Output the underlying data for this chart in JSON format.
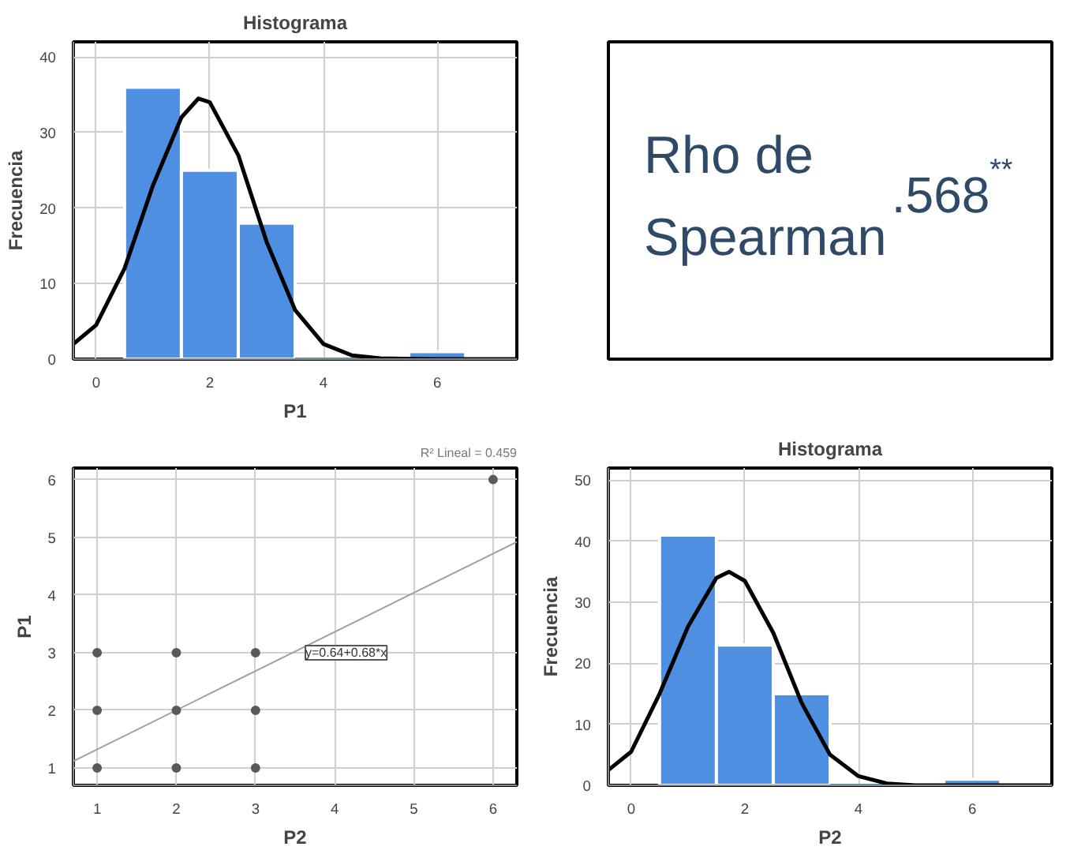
{
  "chart_data": [
    {
      "type": "histogram",
      "title": "Histograma",
      "xlabel": "P1",
      "ylabel": "Frecuencia",
      "bins": [
        0.5,
        1.5,
        2.5,
        3.5,
        4.5,
        5.5,
        6.5
      ],
      "values": [
        36,
        25,
        18,
        0,
        0,
        1
      ],
      "color": "#4f8fe2",
      "series": [
        {
          "type": "line",
          "color": "#000000",
          "x": [
            -0.4,
            0,
            0.5,
            1,
            1.5,
            1.8,
            2,
            2.5,
            3,
            3.5,
            4,
            4.5,
            5,
            6,
            7.4
          ],
          "values": [
            2,
            4.5,
            12,
            23,
            32,
            34.5,
            34,
            27,
            15.5,
            6.5,
            2,
            0.5,
            0.1,
            0,
            0
          ]
        }
      ],
      "xlim": [
        -0.4,
        7.4
      ],
      "ylim": [
        0,
        42
      ],
      "xticks": [
        0,
        2,
        4,
        6
      ],
      "yticks": [
        0,
        10,
        20,
        30,
        40
      ],
      "grid": true
    },
    {
      "type": "other",
      "annotations": [
        "Rho de Spearman",
        ".568$^{**}$"
      ],
      "color": "#2e4a66"
    },
    {
      "type": "scatter",
      "xlabel": "P2",
      "ylabel": "P1",
      "color": "#5a5a5a",
      "marker": "circle",
      "x": [
        1,
        1,
        1,
        2,
        2,
        2,
        3,
        3,
        3,
        6
      ],
      "values": [
        1,
        2,
        3,
        1,
        2,
        3,
        1,
        2,
        3,
        6
      ],
      "series": [
        {
          "type": "line",
          "color": "#a0a0a0",
          "marker": "none",
          "x": [
            0.7,
            6.3
          ],
          "values": [
            1.12,
            4.92
          ]
        }
      ],
      "annotations": [
        {
          "text": "y=0.64+0.68*x",
          "x": 3.55,
          "y": 3
        },
        "R² Lineal = 0.459"
      ],
      "xlim": [
        0.7,
        6.3
      ],
      "ylim": [
        0.7,
        6.2
      ],
      "xticks": [
        1,
        2,
        3,
        4,
        5,
        6
      ],
      "yticks": [
        1,
        2,
        3,
        4,
        5,
        6
      ],
      "grid": true
    },
    {
      "type": "histogram",
      "title": "Histograma",
      "xlabel": "P2",
      "ylabel": "Frecuencia",
      "bins": [
        0.5,
        1.5,
        2.5,
        3.5,
        4.5,
        5.5,
        6.5
      ],
      "values": [
        41,
        23,
        15,
        0,
        0,
        1
      ],
      "color": "#4f8fe2",
      "series": [
        {
          "type": "line",
          "color": "#000000",
          "x": [
            -0.4,
            0,
            0.5,
            1,
            1.5,
            1.72,
            2,
            2.5,
            3,
            3.5,
            4,
            4.5,
            5,
            7.4
          ],
          "values": [
            2.5,
            5.5,
            15,
            26,
            34,
            35,
            33.5,
            25,
            13.5,
            5,
            1.5,
            0.3,
            0,
            0
          ]
        }
      ],
      "xlim": [
        -0.4,
        7.4
      ],
      "ylim": [
        0,
        52
      ],
      "xticks": [
        0,
        2,
        4,
        6
      ],
      "yticks": [
        0,
        10,
        20,
        30,
        40,
        50
      ],
      "grid": true
    }
  ]
}
